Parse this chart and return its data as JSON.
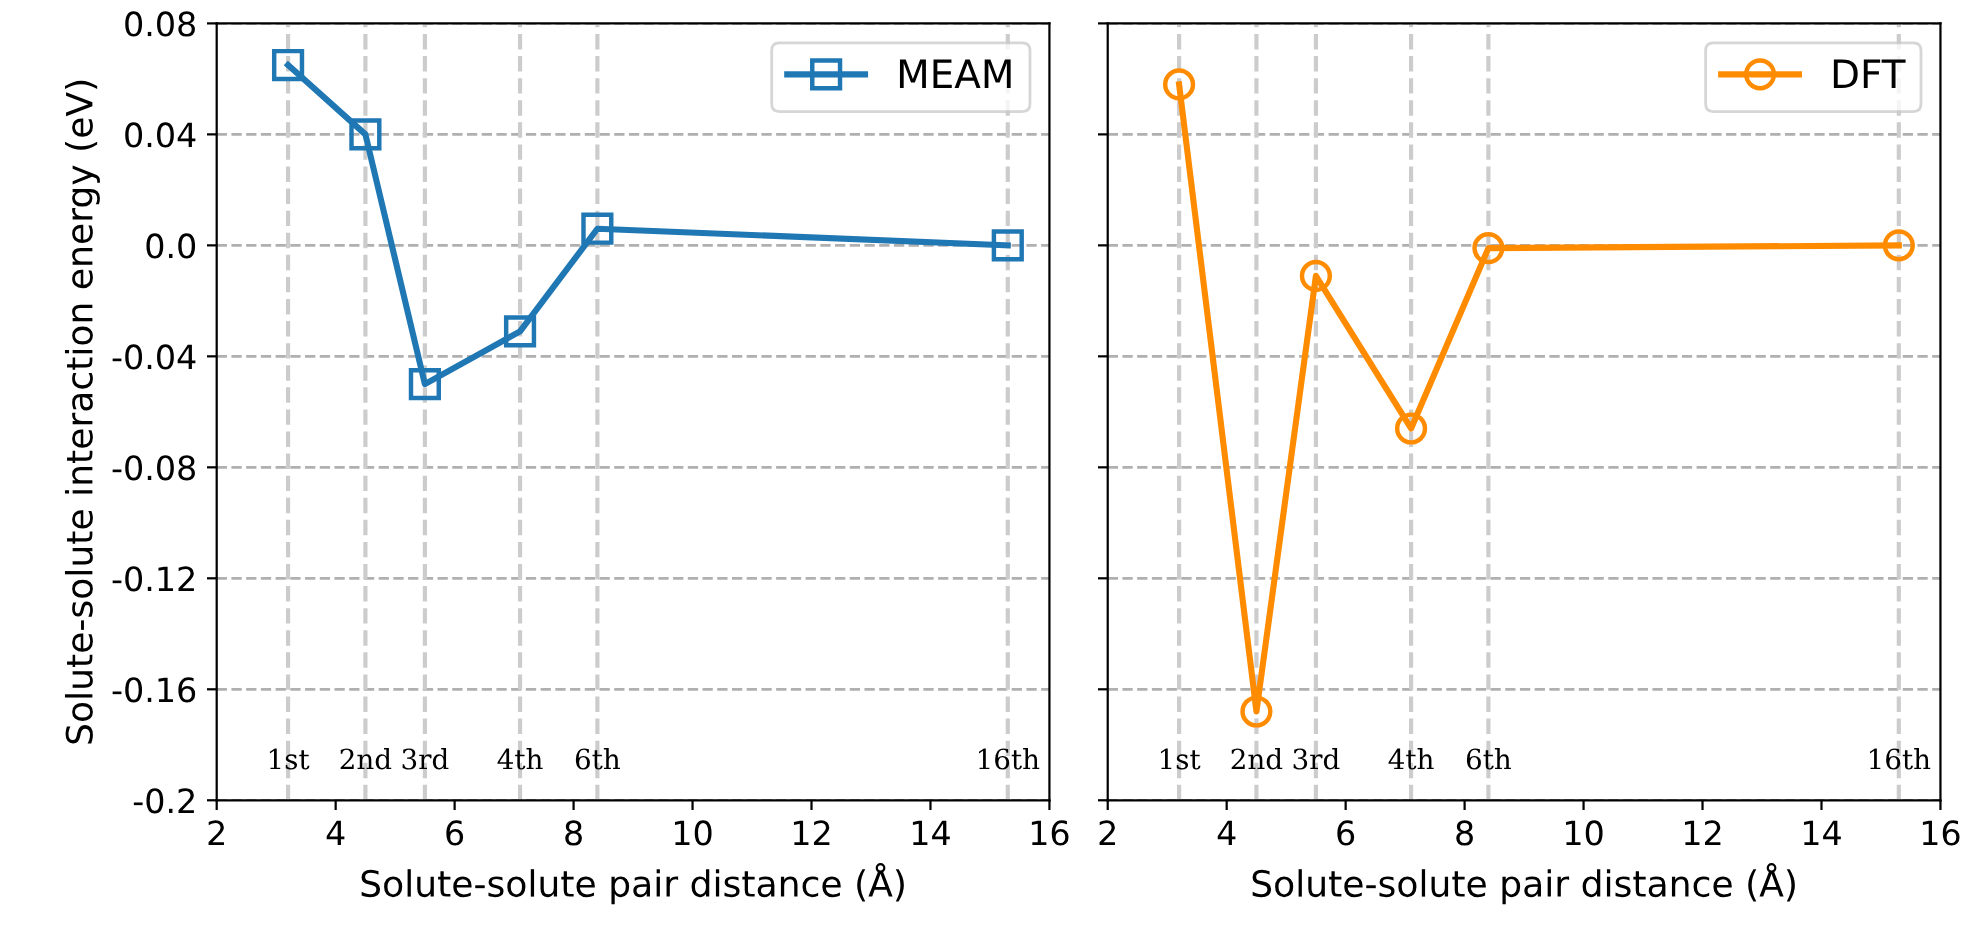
{
  "chart_data": [
    {
      "type": "line",
      "xlabel": "Solute-solute pair distance (Å)",
      "ylabel": "Solute-solute interaction energy (eV)",
      "series": [
        {
          "name": "MEAM",
          "color": "#1f77b4",
          "marker": "square",
          "x": [
            3.2,
            4.5,
            5.5,
            7.1,
            8.4,
            15.3
          ],
          "values": [
            0.065,
            0.04,
            -0.05,
            -0.031,
            0.006,
            0.0
          ]
        }
      ],
      "xlim": [
        2,
        16
      ],
      "xticks": [
        2,
        4,
        6,
        8,
        10,
        12,
        14,
        16
      ],
      "ylim": [
        -0.2,
        0.08
      ],
      "yticks": [
        {
          "value": -0.2,
          "label": "-0.2"
        },
        {
          "value": -0.16,
          "label": "-0.16"
        },
        {
          "value": -0.12,
          "label": "-0.12"
        },
        {
          "value": -0.08,
          "label": "-0.08"
        },
        {
          "value": -0.04,
          "label": "-0.04"
        },
        {
          "value": 0.0,
          "label": "0.0"
        },
        {
          "value": 0.04,
          "label": "0.04"
        },
        {
          "value": 0.08,
          "label": "0.08"
        }
      ],
      "grid": "y",
      "legend": "top right",
      "line_style": "solid",
      "ref_lines": [
        {
          "axis": "x",
          "value": 3.2,
          "label": "1st",
          "color": "#cccccc",
          "line_style": "dashed"
        },
        {
          "axis": "x",
          "value": 4.5,
          "label": "2nd",
          "color": "#cccccc",
          "line_style": "dashed"
        },
        {
          "axis": "x",
          "value": 5.5,
          "label": "3rd",
          "color": "#cccccc",
          "line_style": "dashed"
        },
        {
          "axis": "x",
          "value": 7.1,
          "label": "4th",
          "color": "#cccccc",
          "line_style": "dashed"
        },
        {
          "axis": "x",
          "value": 8.4,
          "label": "6th",
          "color": "#cccccc",
          "line_style": "dashed"
        },
        {
          "axis": "x",
          "value": 15.3,
          "label": "16th",
          "color": "#cccccc",
          "line_style": "dashed"
        }
      ]
    },
    {
      "type": "line",
      "xlabel": "Solute-solute pair distance (Å)",
      "series": [
        {
          "name": "DFT",
          "color": "#ff8c00",
          "marker": "circle",
          "x": [
            3.2,
            4.5,
            5.5,
            7.1,
            8.4,
            15.3
          ],
          "values": [
            0.058,
            -0.168,
            -0.011,
            -0.066,
            -0.001,
            0.0
          ]
        }
      ],
      "xlim": [
        2,
        16
      ],
      "xticks": [
        2,
        4,
        6,
        8,
        10,
        12,
        14,
        16
      ],
      "ylim": [
        -0.2,
        0.08
      ],
      "yticks": [
        -0.2,
        -0.16,
        -0.12,
        -0.08,
        -0.04,
        0.0,
        0.04,
        0.08
      ],
      "grid": "y",
      "legend": "top right",
      "line_style": "solid",
      "tick_labels": "x",
      "ref_lines": [
        {
          "axis": "x",
          "value": 3.2,
          "label": "1st",
          "color": "#cccccc",
          "line_style": "dashed"
        },
        {
          "axis": "x",
          "value": 4.5,
          "label": "2nd",
          "color": "#cccccc",
          "line_style": "dashed"
        },
        {
          "axis": "x",
          "value": 5.5,
          "label": "3rd",
          "color": "#cccccc",
          "line_style": "dashed"
        },
        {
          "axis": "x",
          "value": 7.1,
          "label": "4th",
          "color": "#cccccc",
          "line_style": "dashed"
        },
        {
          "axis": "x",
          "value": 8.4,
          "label": "6th",
          "color": "#cccccc",
          "line_style": "dashed"
        },
        {
          "axis": "x",
          "value": 15.3,
          "label": "16th",
          "color": "#cccccc",
          "line_style": "dashed"
        }
      ]
    }
  ]
}
